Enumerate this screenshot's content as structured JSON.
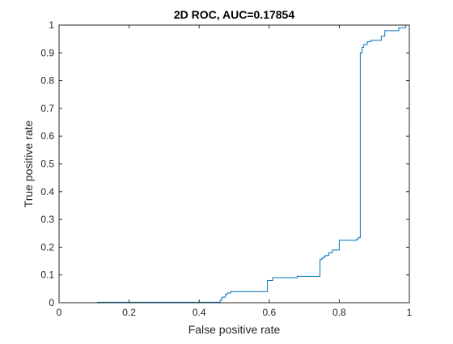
{
  "chart_data": {
    "type": "line",
    "title": "2D ROC, AUC=0.17854",
    "xlabel": "False positive rate",
    "ylabel": "True positive rate",
    "xlim": [
      0,
      1
    ],
    "ylim": [
      0,
      1
    ],
    "xticks": [
      0,
      0.2,
      0.4,
      0.6,
      0.8,
      1
    ],
    "xtick_labels": [
      "0",
      "0.2",
      "0.4",
      "0.6",
      "0.8",
      "1"
    ],
    "yticks": [
      0,
      0.1,
      0.2,
      0.3,
      0.4,
      0.5,
      0.6,
      0.7,
      0.8,
      0.9,
      1
    ],
    "ytick_labels": [
      "0",
      "0.1",
      "0.2",
      "0.3",
      "0.4",
      "0.5",
      "0.6",
      "0.7",
      "0.8",
      "0.9",
      "1"
    ],
    "grid": false,
    "line_color": "#0072BD",
    "series": [
      {
        "step": "post",
        "x": [
          0,
          0.11,
          0.46,
          0.465,
          0.475,
          0.48,
          0.49,
          0.595,
          0.61,
          0.62,
          0.68,
          0.745,
          0.75,
          0.755,
          0.76,
          0.77,
          0.78,
          0.8,
          0.82,
          0.85,
          0.855,
          0.86,
          0.865,
          0.87,
          0.88,
          0.89,
          0.92,
          0.93,
          0.95,
          0.97,
          0.98,
          0.99,
          1.0
        ],
        "y": [
          0,
          0.002,
          0.01,
          0.02,
          0.03,
          0.035,
          0.04,
          0.08,
          0.09,
          0.09,
          0.095,
          0.155,
          0.16,
          0.165,
          0.17,
          0.18,
          0.19,
          0.225,
          0.225,
          0.23,
          0.235,
          0.9,
          0.92,
          0.93,
          0.94,
          0.945,
          0.96,
          0.98,
          0.98,
          0.99,
          0.99,
          1.0,
          1.0
        ]
      }
    ]
  }
}
